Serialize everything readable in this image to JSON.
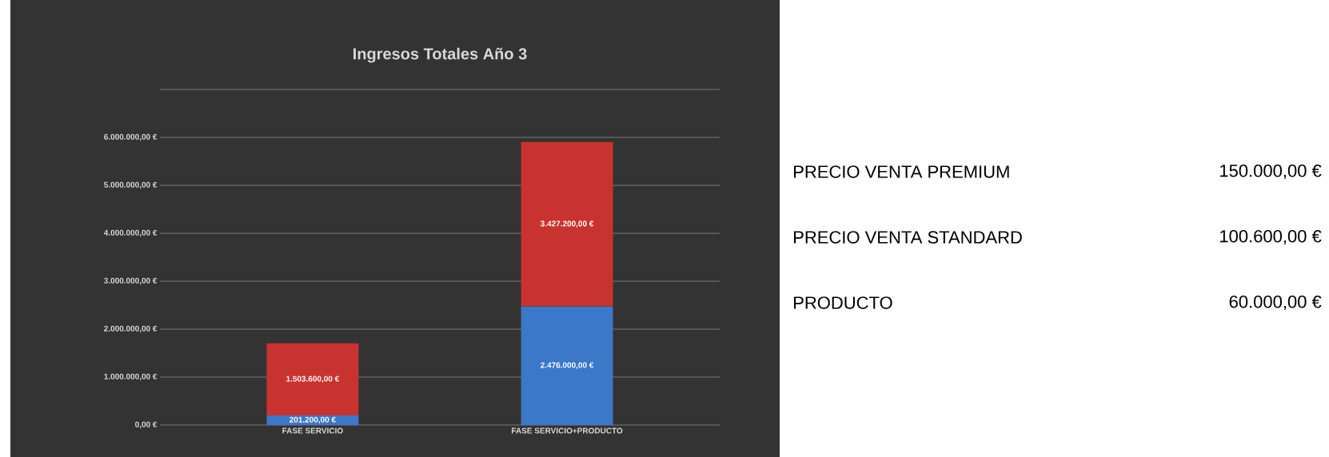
{
  "chart_data": [
    {
      "type": "bar",
      "title": "Ingresos Totales Año 3",
      "stacked": true,
      "grid": "y",
      "categories": [
        "FASE SERVICIO",
        "FASE SERVICIO+PRODUCTO"
      ],
      "series": [
        {
          "color": "#3b78c8",
          "values": [
            201200,
            2476000
          ],
          "value_labels": [
            "201.200,00 €",
            "2.476.000,00 €"
          ]
        },
        {
          "color": "#c8332f",
          "values": [
            1503600,
            3427200
          ],
          "value_labels": [
            "1.503.600,00 €",
            "3.427.200,00 €"
          ]
        }
      ],
      "ylim": [
        0,
        7000000
      ],
      "yticks": [
        {
          "value": 0,
          "label": "0,00 €"
        },
        {
          "value": 1000000,
          "label": "1.000.000,00 €"
        },
        {
          "value": 2000000,
          "label": "2.000.000,00 €"
        },
        {
          "value": 3000000,
          "label": "3.000.000,00 €"
        },
        {
          "value": 4000000,
          "label": "4.000.000,00 €"
        },
        {
          "value": 5000000,
          "label": "5.000.000,00 €"
        },
        {
          "value": 6000000,
          "label": "6.000.000,00 €"
        },
        {
          "value": 7000000,
          "label": null
        }
      ]
    },
    {
      "type": "other",
      "annotations": [
        "PRECIO VENTA PREMIUM",
        "150.000,00 €",
        "PRECIO VENTA STANDARD",
        "100.600,00 €",
        "PRODUCTO",
        "60.000,00 €"
      ]
    }
  ]
}
